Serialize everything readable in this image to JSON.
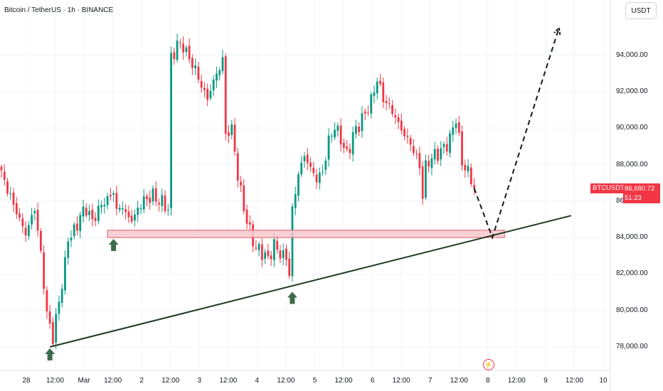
{
  "header": {
    "title": "Bitcoin / TetherUS · 1h · BINANCE",
    "currency_button": "USDT"
  },
  "price_label": {
    "symbol": "BTCUSDT",
    "price": "86,680.72",
    "countdown": "51:23"
  },
  "colors": {
    "up": "#089981",
    "down": "#f23645",
    "zone_fill": "#f8c9ce",
    "zone_border": "#e05a6a",
    "trendline": "#1f3a1f",
    "arrow": "#3e6b4b",
    "grid": "#f0f3fa",
    "axis": "#e0e3eb"
  },
  "chart_data": {
    "type": "candlestick",
    "y_ticks": [
      78000,
      80000,
      82000,
      84000,
      86000,
      88000,
      90000,
      92000,
      94000
    ],
    "y_tick_labels": [
      "78,000.00",
      "80,000.00",
      "82,000.00",
      "84,000.00",
      "86,000.00",
      "88,000.00",
      "90,000.00",
      "92,000.00",
      "94,000.00"
    ],
    "x_tick_labels": [
      "28",
      "12:00",
      "Mar",
      "12:00",
      "2",
      "12:00",
      "3",
      "12:00",
      "4",
      "12:00",
      "5",
      "12:00",
      "6",
      "12:00",
      "7",
      "12:00",
      "8",
      "12:00",
      "9",
      "12:00",
      "10"
    ],
    "close_path": [
      [
        0,
        87500
      ],
      [
        4,
        85800
      ],
      [
        8,
        84200
      ],
      [
        11,
        85600
      ],
      [
        13,
        83100
      ],
      [
        15,
        79800
      ],
      [
        17,
        78500
      ],
      [
        19,
        80500
      ],
      [
        21,
        82500
      ],
      [
        22,
        84000
      ],
      [
        24,
        84300
      ],
      [
        26,
        85200
      ],
      [
        28,
        85600
      ],
      [
        30,
        84900
      ],
      [
        33,
        85800
      ],
      [
        35,
        86100
      ],
      [
        37,
        86500
      ],
      [
        38,
        85500
      ],
      [
        40,
        85700
      ],
      [
        42,
        85000
      ],
      [
        44,
        85150
      ],
      [
        46,
        85900
      ],
      [
        48,
        86100
      ],
      [
        50,
        86300
      ],
      [
        52,
        86000
      ],
      [
        54,
        85800
      ],
      [
        55,
        85500
      ],
      [
        56,
        93800
      ],
      [
        58,
        94600
      ],
      [
        60,
        94500
      ],
      [
        62,
        93800
      ],
      [
        64,
        93200
      ],
      [
        66,
        92300
      ],
      [
        68,
        91600
      ],
      [
        70,
        92600
      ],
      [
        72,
        93300
      ],
      [
        73,
        93800
      ],
      [
        74,
        89600
      ],
      [
        76,
        90000
      ],
      [
        78,
        87400
      ],
      [
        80,
        85600
      ],
      [
        82,
        84300
      ],
      [
        84,
        83400
      ],
      [
        86,
        83200
      ],
      [
        88,
        82800
      ],
      [
        90,
        83600
      ],
      [
        92,
        83100
      ],
      [
        94,
        82900
      ],
      [
        95,
        82000
      ],
      [
        96,
        85500
      ],
      [
        98,
        87500
      ],
      [
        100,
        88500
      ],
      [
        102,
        87800
      ],
      [
        104,
        87200
      ],
      [
        106,
        87600
      ],
      [
        108,
        89300
      ],
      [
        110,
        90100
      ],
      [
        112,
        89400
      ],
      [
        114,
        88500
      ],
      [
        116,
        89600
      ],
      [
        118,
        90200
      ],
      [
        120,
        90800
      ],
      [
        122,
        91500
      ],
      [
        124,
        92700
      ],
      [
        126,
        91600
      ],
      [
        128,
        91200
      ],
      [
        130,
        90600
      ],
      [
        132,
        89900
      ],
      [
        134,
        89400
      ],
      [
        136,
        88800
      ],
      [
        138,
        87900
      ],
      [
        139,
        86300
      ],
      [
        140,
        87900
      ],
      [
        142,
        88400
      ],
      [
        144,
        88600
      ],
      [
        146,
        88900
      ],
      [
        148,
        89400
      ],
      [
        150,
        90600
      ],
      [
        152,
        88100
      ],
      [
        154,
        87600
      ],
      [
        156,
        86700
      ]
    ],
    "support_zone": {
      "from_index": 35,
      "to_index": 166,
      "y_low": 84000,
      "y_high": 84400
    },
    "trendline": {
      "from": [
        16,
        78000
      ],
      "to": [
        188,
        85200
      ]
    },
    "support_arrows": [
      [
        16,
        78000
      ],
      [
        37,
        84000
      ],
      [
        96,
        81100
      ]
    ],
    "projection": [
      [
        156,
        86700
      ],
      [
        162,
        84000
      ],
      [
        184,
        95500
      ]
    ]
  }
}
